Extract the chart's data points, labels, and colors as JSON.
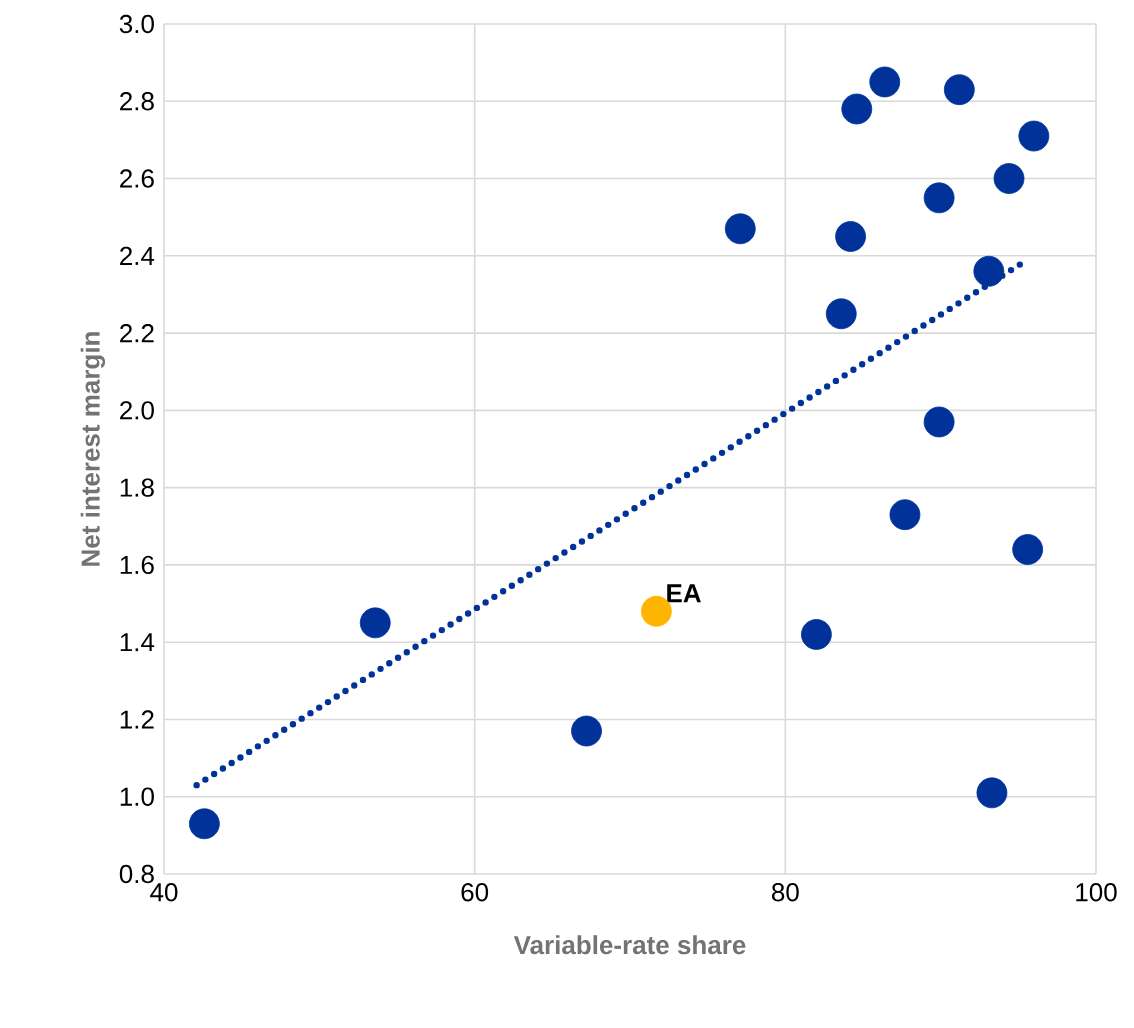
{
  "chart_data": {
    "type": "scatter",
    "xlabel": "Variable-rate  share",
    "ylabel": "Net interest margin",
    "marker": "circle",
    "grid": true,
    "xlim": [
      40,
      100
    ],
    "xticks": [
      40,
      60,
      80,
      100
    ],
    "ylim": [
      0.8,
      3.0
    ],
    "yticks": [
      {
        "value": 0.8,
        "label": "0.8"
      },
      {
        "value": 1.0,
        "label": "1.0"
      },
      {
        "value": 1.2,
        "label": "1.2"
      },
      {
        "value": 1.4,
        "label": "1.4"
      },
      {
        "value": 1.6,
        "label": "1.6"
      },
      {
        "value": 1.8,
        "label": "1.8"
      },
      {
        "value": 2.0,
        "label": "2.0"
      },
      {
        "value": 2.2,
        "label": "2.2"
      },
      {
        "value": 2.4,
        "label": "2.4"
      },
      {
        "value": 2.6,
        "label": "2.6"
      },
      {
        "value": 2.8,
        "label": "2.8"
      },
      {
        "value": 3.0,
        "label": "3.0"
      }
    ],
    "series": [
      {
        "type": "line",
        "line_style": "dotted",
        "marker": "none",
        "color": "#003299",
        "x": [
          42.1,
          95.2
        ],
        "values": [
          1.03,
          2.38
        ]
      },
      {
        "color": "#003299",
        "x": [
          42.6,
          53.6,
          67.2,
          77.1,
          82.0,
          83.6,
          84.2,
          84.6,
          86.4,
          87.7,
          89.9,
          89.9,
          91.2,
          93.1,
          93.3,
          94.4,
          95.6,
          96.0
        ],
        "values": [
          0.93,
          1.45,
          1.17,
          2.47,
          1.42,
          2.25,
          2.45,
          2.78,
          2.85,
          1.73,
          1.97,
          2.55,
          2.83,
          2.36,
          1.01,
          2.6,
          1.64,
          2.71
        ]
      },
      {
        "color": "#ffb400",
        "x": [
          71.7
        ],
        "values": [
          1.48
        ]
      }
    ],
    "annotations": [
      {
        "text": "EA",
        "x": 71.7,
        "y": 1.48
      }
    ]
  }
}
